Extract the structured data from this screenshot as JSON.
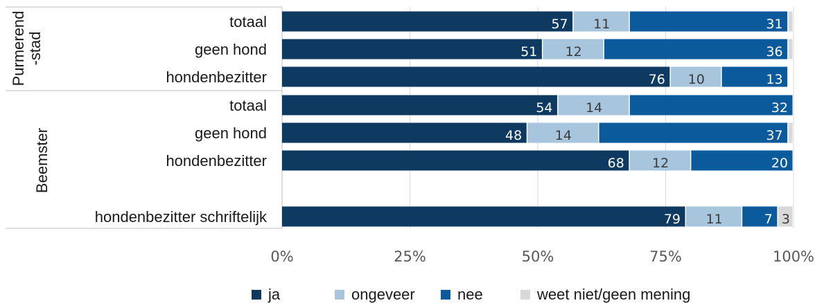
{
  "chart_data": {
    "type": "bar",
    "orientation": "horizontal",
    "stacked": true,
    "groups": [
      {
        "label": "Purmerend\n-stad",
        "categories": [
          "totaal",
          "geen hond",
          "hondenbezitter"
        ]
      },
      {
        "label": "Beemster",
        "categories": [
          "totaal",
          "geen hond",
          "hondenbezitter",
          "",
          "hondenbezitter schriftelijk"
        ]
      }
    ],
    "categories": [
      "totaal",
      "geen hond",
      "hondenbezitter",
      "totaal",
      "geen hond",
      "hondenbezitter",
      "",
      "hondenbezitter schriftelijk"
    ],
    "series": [
      {
        "name": "ja",
        "color": "#0e3a62",
        "values": [
          57,
          51,
          76,
          54,
          48,
          68,
          null,
          79
        ]
      },
      {
        "name": "ongeveer",
        "color": "#a7c6de",
        "values": [
          11,
          12,
          10,
          14,
          14,
          12,
          null,
          11
        ]
      },
      {
        "name": "nee",
        "color": "#0b5a9c",
        "values": [
          31,
          36,
          13,
          32,
          37,
          20,
          null,
          7
        ]
      },
      {
        "name": "weet niet/geen mening",
        "color": "#d9d9d9",
        "values": [
          1,
          1,
          0,
          0,
          1,
          0,
          null,
          3
        ]
      }
    ],
    "data_labels_shown": {
      "weet niet/geen mening": [
        null,
        null,
        null,
        null,
        null,
        null,
        null,
        "3"
      ]
    },
    "xlim": [
      0,
      100
    ],
    "xticks": [
      "0%",
      "25%",
      "50%",
      "75%",
      "100%"
    ],
    "grid": true,
    "legend_position": "bottom",
    "title": "",
    "xlabel": "",
    "ylabel": ""
  }
}
